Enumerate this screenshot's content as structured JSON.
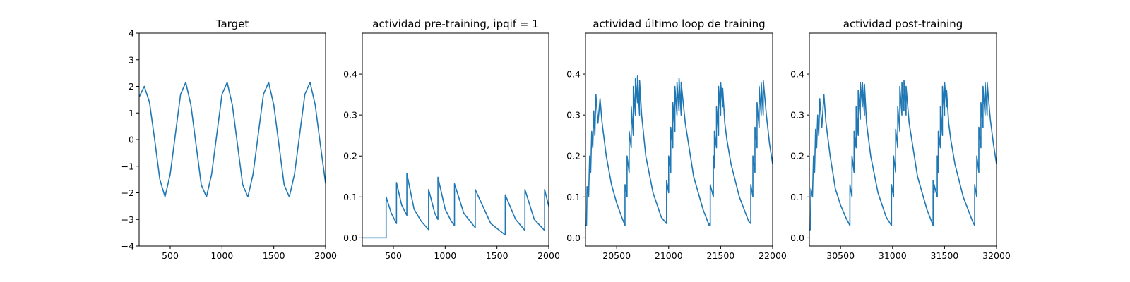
{
  "colors": {
    "series": "#1f77b4",
    "background": "#ffffff",
    "axes": "#000000"
  },
  "chart_data": [
    {
      "type": "line",
      "title": "Target",
      "xlabel": "",
      "ylabel": "",
      "xlim": [
        200,
        2000
      ],
      "ylim": [
        -4,
        4
      ],
      "xticks": [
        500,
        1000,
        1500,
        2000
      ],
      "yticks": [
        -4,
        -3,
        -2,
        -1,
        0,
        1,
        2,
        3,
        4
      ],
      "grid": false,
      "series": [
        {
          "x": [
            200,
            250,
            300,
            350,
            400,
            450,
            500,
            550,
            600,
            650,
            700,
            750,
            800,
            850,
            900,
            950,
            1000,
            1050,
            1100,
            1150,
            1200,
            1250,
            1300,
            1350,
            1400,
            1450,
            1500,
            1550,
            1600,
            1650,
            1700,
            1750,
            1800,
            1850,
            1900,
            1950,
            2000
          ],
          "y": [
            1.6,
            2.0,
            1.4,
            0.0,
            -1.5,
            -2.15,
            -1.3,
            0.2,
            1.7,
            2.15,
            1.3,
            -0.2,
            -1.7,
            -2.15,
            -1.3,
            0.2,
            1.7,
            2.15,
            1.3,
            -0.2,
            -1.7,
            -2.15,
            -1.3,
            0.2,
            1.7,
            2.15,
            1.3,
            -0.2,
            -1.7,
            -2.15,
            -1.3,
            0.2,
            1.7,
            2.15,
            1.3,
            -0.2,
            -1.65
          ]
        }
      ]
    },
    {
      "type": "line",
      "title": "actividad pre-training, ipqif = 1",
      "xlabel": "",
      "ylabel": "",
      "xlim": [
        200,
        2000
      ],
      "ylim": [
        -0.02,
        0.5
      ],
      "xticks": [
        500,
        1000,
        1500,
        2000
      ],
      "yticks": [
        0.0,
        0.1,
        0.2,
        0.3,
        0.4
      ],
      "grid": false,
      "series": [
        {
          "x": [
            200,
            430,
            430,
            480,
            530,
            530,
            580,
            630,
            630,
            700,
            770,
            840,
            840,
            900,
            930,
            930,
            1000,
            1060,
            1090,
            1090,
            1180,
            1290,
            1290,
            1440,
            1580,
            1580,
            1680,
            1770,
            1770,
            1860,
            1960,
            1960,
            2000
          ],
          "y": [
            0,
            0,
            0.1,
            0.06,
            0.035,
            0.135,
            0.08,
            0.055,
            0.157,
            0.07,
            0.04,
            0.02,
            0.118,
            0.06,
            0.045,
            0.148,
            0.07,
            0.04,
            0.03,
            0.132,
            0.06,
            0.025,
            0.118,
            0.035,
            0.007,
            0.105,
            0.045,
            0.018,
            0.118,
            0.045,
            0.018,
            0.118,
            0.077
          ]
        }
      ]
    },
    {
      "type": "line",
      "title": "actividad último loop de training",
      "xlabel": "",
      "ylabel": "",
      "xlim": [
        20200,
        22000
      ],
      "ylim": [
        -0.02,
        0.5
      ],
      "xticks": [
        20500,
        21000,
        21500,
        22000
      ],
      "yticks": [
        0.0,
        0.1,
        0.2,
        0.3,
        0.4
      ],
      "grid": false,
      "series": [
        {
          "x": [
            20200,
            20210,
            20215,
            20230,
            20240,
            20250,
            20260,
            20270,
            20280,
            20290,
            20300,
            20320,
            20340,
            20360,
            20400,
            20450,
            20500,
            20550,
            20580,
            20580,
            20600,
            20600,
            20620,
            20620,
            20640,
            20640,
            20660,
            20660,
            20680,
            20680,
            20700,
            20700,
            20720,
            20720,
            20740,
            20780,
            20850,
            20930,
            20980,
            20980,
            21000,
            21000,
            21020,
            21020,
            21040,
            21040,
            21060,
            21060,
            21080,
            21080,
            21100,
            21100,
            21120,
            21120,
            21160,
            21240,
            21330,
            21390,
            21390,
            21400,
            21400,
            21430,
            21430,
            21440,
            21440,
            21460,
            21460,
            21480,
            21480,
            21500,
            21500,
            21520,
            21520,
            21540,
            21560,
            21600,
            21680,
            21770,
            21790,
            21790,
            21810,
            21810,
            21830,
            21830,
            21850,
            21850,
            21870,
            21870,
            21890,
            21890,
            21910,
            21910,
            21940,
            21970,
            22000
          ],
          "y": [
            0.03,
            0.03,
            0.125,
            0.1,
            0.2,
            0.16,
            0.26,
            0.22,
            0.31,
            0.25,
            0.35,
            0.28,
            0.34,
            0.28,
            0.2,
            0.13,
            0.085,
            0.05,
            0.03,
            0.13,
            0.1,
            0.2,
            0.16,
            0.26,
            0.22,
            0.32,
            0.25,
            0.37,
            0.3,
            0.39,
            0.33,
            0.395,
            0.3,
            0.385,
            0.3,
            0.2,
            0.11,
            0.05,
            0.035,
            0.14,
            0.11,
            0.2,
            0.16,
            0.27,
            0.22,
            0.33,
            0.26,
            0.37,
            0.3,
            0.38,
            0.31,
            0.39,
            0.3,
            0.38,
            0.28,
            0.15,
            0.07,
            0.03,
            0.035,
            0.03,
            0.13,
            0.1,
            0.2,
            0.17,
            0.26,
            0.22,
            0.32,
            0.25,
            0.37,
            0.3,
            0.38,
            0.32,
            0.365,
            0.28,
            0.24,
            0.18,
            0.1,
            0.04,
            0.035,
            0.13,
            0.1,
            0.2,
            0.16,
            0.27,
            0.22,
            0.33,
            0.27,
            0.37,
            0.3,
            0.38,
            0.3,
            0.385,
            0.3,
            0.23,
            0.18
          ]
        }
      ]
    },
    {
      "type": "line",
      "title": "actividad post-training",
      "xlabel": "",
      "ylabel": "",
      "xlim": [
        30200,
        32000
      ],
      "ylim": [
        -0.02,
        0.5
      ],
      "xticks": [
        30500,
        31000,
        31500,
        32000
      ],
      "yticks": [
        0.0,
        0.1,
        0.2,
        0.3,
        0.4
      ],
      "grid": false,
      "series": [
        {
          "x": [
            30200,
            30210,
            30215,
            30230,
            30240,
            30250,
            30260,
            30270,
            30280,
            30290,
            30300,
            30320,
            30340,
            30360,
            30400,
            30450,
            30500,
            30550,
            30590,
            30590,
            30610,
            30610,
            30630,
            30630,
            30650,
            30650,
            30670,
            30670,
            30690,
            30690,
            30710,
            30710,
            30730,
            30730,
            30750,
            30790,
            30860,
            30940,
            30990,
            30990,
            31010,
            31010,
            31030,
            31030,
            31050,
            31050,
            31070,
            31070,
            31090,
            31090,
            31110,
            31110,
            31130,
            31130,
            31160,
            31240,
            31330,
            31390,
            31390,
            31400,
            31400,
            31430,
            31430,
            31440,
            31440,
            31460,
            31460,
            31480,
            31480,
            31500,
            31500,
            31520,
            31520,
            31540,
            31560,
            31600,
            31680,
            31770,
            31790,
            31790,
            31810,
            31810,
            31830,
            31830,
            31850,
            31850,
            31870,
            31870,
            31890,
            31890,
            31910,
            31910,
            31940,
            31970,
            32000
          ],
          "y": [
            0.02,
            0.02,
            0.12,
            0.1,
            0.2,
            0.16,
            0.265,
            0.22,
            0.3,
            0.25,
            0.34,
            0.27,
            0.35,
            0.28,
            0.2,
            0.12,
            0.08,
            0.05,
            0.03,
            0.13,
            0.1,
            0.2,
            0.16,
            0.26,
            0.22,
            0.32,
            0.25,
            0.36,
            0.29,
            0.38,
            0.32,
            0.38,
            0.3,
            0.375,
            0.28,
            0.2,
            0.11,
            0.05,
            0.03,
            0.13,
            0.1,
            0.2,
            0.16,
            0.265,
            0.22,
            0.32,
            0.26,
            0.37,
            0.3,
            0.38,
            0.31,
            0.385,
            0.3,
            0.37,
            0.28,
            0.15,
            0.07,
            0.03,
            0.14,
            0.11,
            0.13,
            0.1,
            0.2,
            0.16,
            0.26,
            0.22,
            0.32,
            0.25,
            0.37,
            0.3,
            0.38,
            0.32,
            0.36,
            0.28,
            0.24,
            0.18,
            0.1,
            0.04,
            0.03,
            0.13,
            0.1,
            0.2,
            0.16,
            0.27,
            0.22,
            0.33,
            0.27,
            0.37,
            0.3,
            0.38,
            0.3,
            0.38,
            0.29,
            0.23,
            0.18
          ]
        }
      ]
    }
  ]
}
